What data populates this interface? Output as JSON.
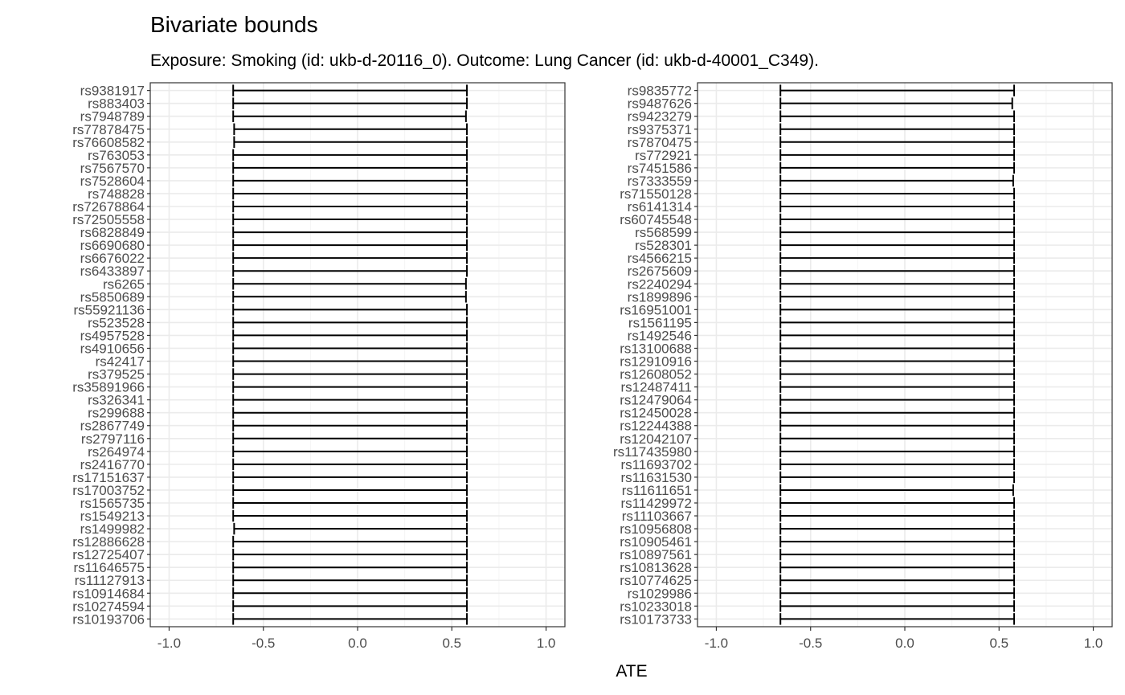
{
  "title": "Bivariate bounds",
  "subtitle": "Exposure: Smoking (id: ukb-d-20116_0). Outcome: Lung Cancer (id: ukb-d-40001_C349).",
  "xlabel": "ATE",
  "colors": {
    "panel_border": "#333333",
    "grid_major": "#ebebeb",
    "grid_minor": "#f5f5f5",
    "errorbar": "#000000",
    "tick_text": "#4d4d4d"
  },
  "chart_data": [
    {
      "type": "errorbar",
      "xlim": [
        -1.1,
        1.1
      ],
      "x_ticks": [
        -1.0,
        -0.5,
        0.0,
        0.5,
        1.0
      ],
      "x_tick_labels": [
        "-1.0",
        "-0.5",
        "0.0",
        "0.5",
        "1.0"
      ],
      "grid": true,
      "categories": [
        "rs9381917",
        "rs883403",
        "rs7948789",
        "rs77878475",
        "rs76608582",
        "rs763053",
        "rs7567570",
        "rs7528604",
        "rs748828",
        "rs72678864",
        "rs72505558",
        "rs6828849",
        "rs6690680",
        "rs6676022",
        "rs6433897",
        "rs6265",
        "rs5850689",
        "rs55921136",
        "rs523528",
        "rs4957528",
        "rs4910656",
        "rs42417",
        "rs379525",
        "rs35891966",
        "rs326341",
        "rs299688",
        "rs2867749",
        "rs2797116",
        "rs264974",
        "rs2416770",
        "rs17151637",
        "rs17003752",
        "rs1565735",
        "rs1549213",
        "rs1499982",
        "rs12886628",
        "rs12725407",
        "rs11646575",
        "rs11127913",
        "rs10914684",
        "rs10274594",
        "rs10193706"
      ],
      "lower": [
        -0.66,
        -0.66,
        -0.66,
        -0.655,
        -0.655,
        -0.66,
        -0.66,
        -0.66,
        -0.66,
        -0.66,
        -0.66,
        -0.66,
        -0.66,
        -0.66,
        -0.66,
        -0.66,
        -0.66,
        -0.66,
        -0.66,
        -0.66,
        -0.66,
        -0.66,
        -0.66,
        -0.66,
        -0.66,
        -0.66,
        -0.66,
        -0.66,
        -0.66,
        -0.66,
        -0.66,
        -0.66,
        -0.66,
        -0.66,
        -0.655,
        -0.66,
        -0.66,
        -0.66,
        -0.66,
        -0.66,
        -0.66,
        -0.66
      ],
      "upper": [
        0.58,
        0.58,
        0.575,
        0.58,
        0.58,
        0.58,
        0.58,
        0.58,
        0.58,
        0.58,
        0.58,
        0.58,
        0.58,
        0.58,
        0.58,
        0.575,
        0.575,
        0.58,
        0.58,
        0.58,
        0.58,
        0.58,
        0.58,
        0.58,
        0.58,
        0.58,
        0.58,
        0.58,
        0.58,
        0.58,
        0.58,
        0.58,
        0.58,
        0.58,
        0.58,
        0.58,
        0.58,
        0.58,
        0.58,
        0.58,
        0.58,
        0.58
      ]
    },
    {
      "type": "errorbar",
      "xlim": [
        -1.1,
        1.1
      ],
      "x_ticks": [
        -1.0,
        -0.5,
        0.0,
        0.5,
        1.0
      ],
      "x_tick_labels": [
        "-1.0",
        "-0.5",
        "0.0",
        "0.5",
        "1.0"
      ],
      "grid": true,
      "categories": [
        "rs9835772",
        "rs9487626",
        "rs9423279",
        "rs9375371",
        "rs7870475",
        "rs772921",
        "rs7451586",
        "rs7333559",
        "rs71550128",
        "rs6141314",
        "rs60745548",
        "rs568599",
        "rs528301",
        "rs4566215",
        "rs2675609",
        "rs2240294",
        "rs1899896",
        "rs16951001",
        "rs1561195",
        "rs1492546",
        "rs13100688",
        "rs12910916",
        "rs12608052",
        "rs12487411",
        "rs12479064",
        "rs12450028",
        "rs12244388",
        "rs12042107",
        "rs117435980",
        "rs11693702",
        "rs11631530",
        "rs11611651",
        "rs11429972",
        "rs11103667",
        "rs10956808",
        "rs10905461",
        "rs10897561",
        "rs10813628",
        "rs10774625",
        "rs1029986",
        "rs10233018",
        "rs10173733"
      ],
      "lower": [
        -0.66,
        -0.66,
        -0.66,
        -0.66,
        -0.66,
        -0.66,
        -0.66,
        -0.66,
        -0.66,
        -0.66,
        -0.66,
        -0.66,
        -0.66,
        -0.66,
        -0.66,
        -0.66,
        -0.66,
        -0.66,
        -0.66,
        -0.66,
        -0.66,
        -0.66,
        -0.66,
        -0.66,
        -0.66,
        -0.66,
        -0.66,
        -0.66,
        -0.66,
        -0.66,
        -0.66,
        -0.66,
        -0.66,
        -0.66,
        -0.66,
        -0.66,
        -0.66,
        -0.66,
        -0.66,
        -0.66,
        -0.66,
        -0.66
      ],
      "upper": [
        0.58,
        0.57,
        0.58,
        0.58,
        0.58,
        0.58,
        0.58,
        0.575,
        0.58,
        0.58,
        0.58,
        0.58,
        0.58,
        0.58,
        0.58,
        0.58,
        0.58,
        0.58,
        0.58,
        0.58,
        0.58,
        0.58,
        0.58,
        0.58,
        0.58,
        0.58,
        0.58,
        0.58,
        0.58,
        0.58,
        0.58,
        0.575,
        0.58,
        0.58,
        0.58,
        0.58,
        0.58,
        0.58,
        0.58,
        0.58,
        0.58,
        0.58
      ]
    }
  ]
}
